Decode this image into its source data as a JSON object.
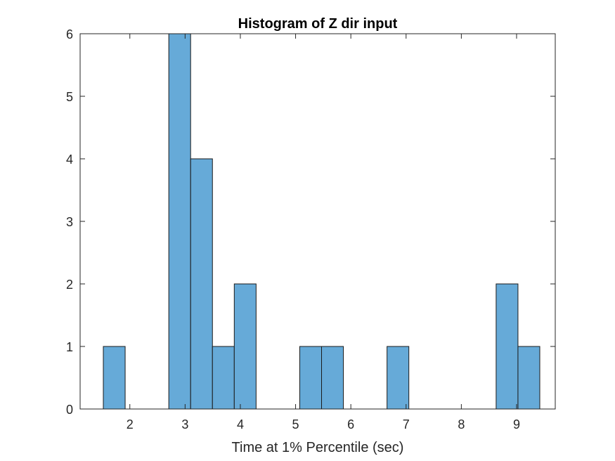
{
  "chart_data": {
    "type": "bar",
    "title": "Histogram of Z dir input",
    "xlabel": "Time at 1% Percentile (sec)",
    "ylabel": "",
    "xlim": [
      1.1,
      9.7
    ],
    "ylim": [
      0,
      6
    ],
    "xticks": [
      2,
      3,
      4,
      5,
      6,
      7,
      8,
      9
    ],
    "yticks": [
      0,
      1,
      2,
      3,
      4,
      5,
      6
    ],
    "bin_edges": [
      1.52,
      1.915,
      2.31,
      2.705,
      3.1,
      3.495,
      3.89,
      4.285,
      4.68,
      5.075,
      5.47,
      5.865,
      6.26,
      6.655,
      7.05,
      7.445,
      7.84,
      8.235,
      8.63,
      9.025,
      9.42
    ],
    "values": [
      1,
      0,
      0,
      6,
      4,
      1,
      2,
      0,
      0,
      1,
      1,
      0,
      0,
      1,
      0,
      0,
      0,
      0,
      2,
      1
    ],
    "grid": false,
    "bar_color": "#66aad8",
    "edge_color": "#1a1a1a"
  }
}
